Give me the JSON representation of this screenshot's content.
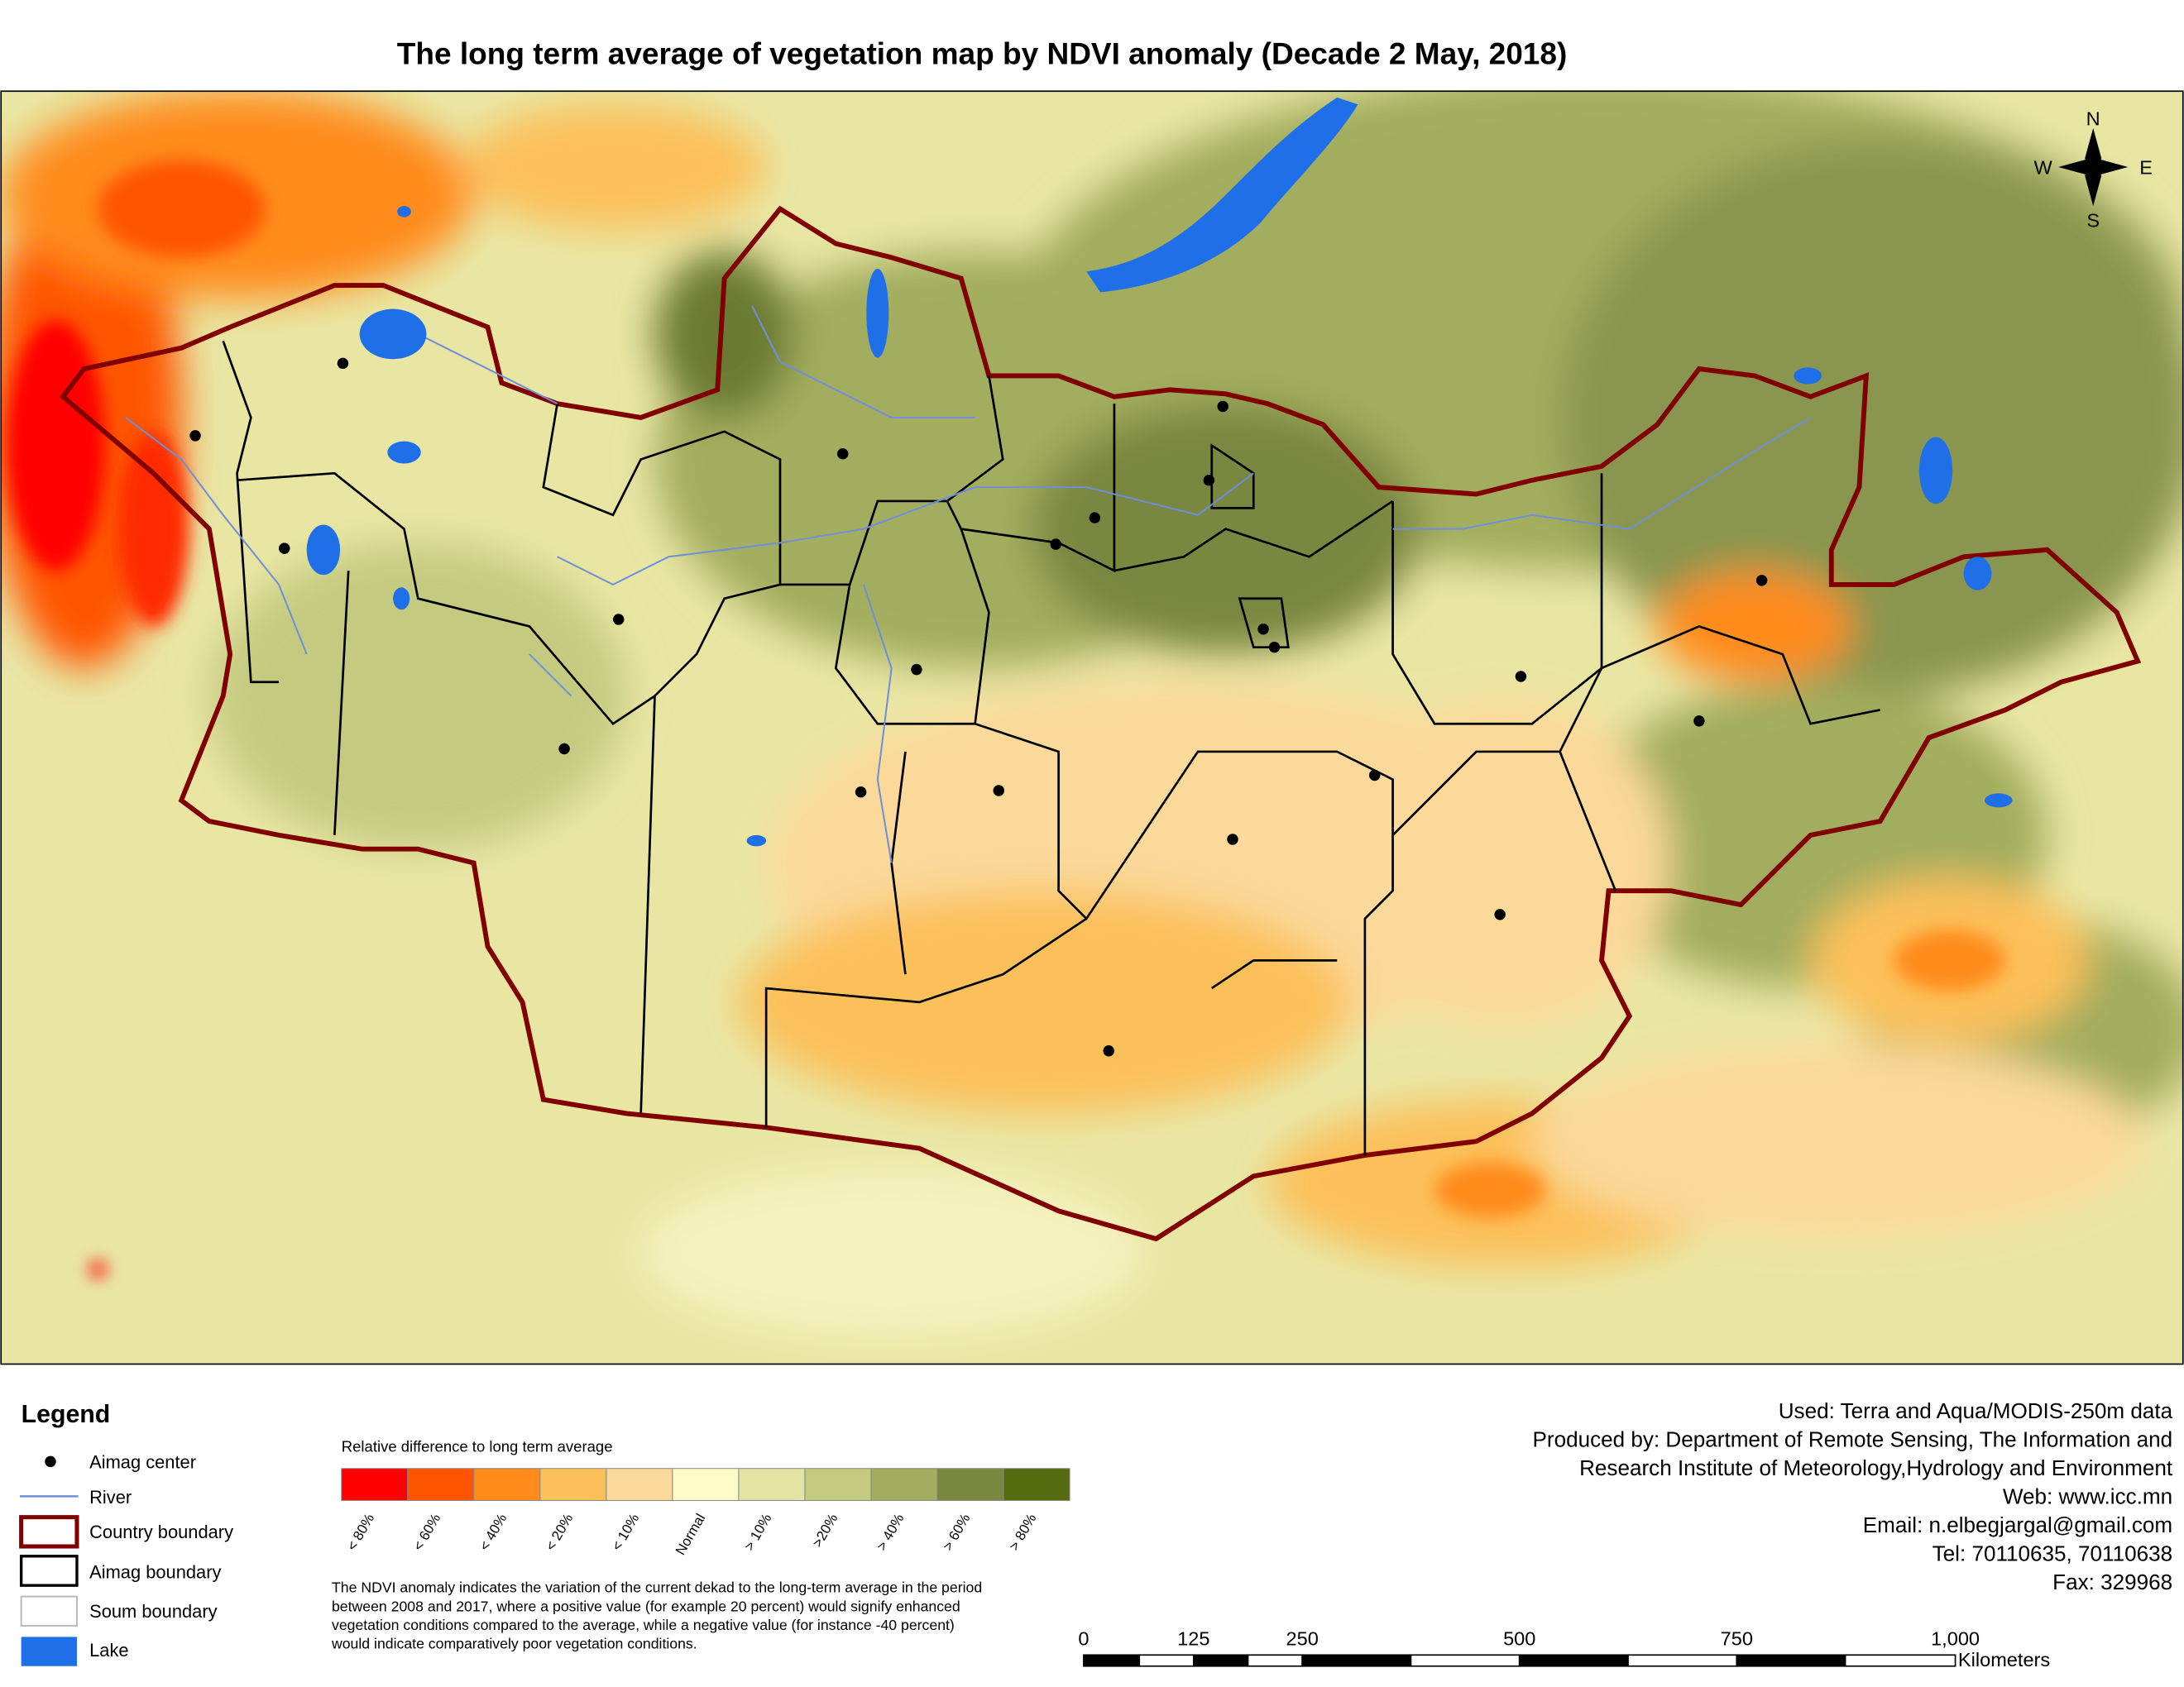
{
  "header": {
    "title": "The long term average of vegetation map by NDVI anomaly (Decade 2 May, 2018)"
  },
  "compass": {
    "north": "N",
    "east": "E",
    "south": "S",
    "west": "W"
  },
  "legend": {
    "title": "Legend",
    "items": [
      "Aimag center",
      "River",
      "Country boundary",
      "Aimag boundary",
      "Soum boundary",
      "Lake"
    ]
  },
  "colorbar": {
    "title": "Relative difference to long term average",
    "classes": [
      {
        "label": "< 80%",
        "color": "#ff0000"
      },
      {
        "label": "< 60%",
        "color": "#ff5500"
      },
      {
        "label": "< 40%",
        "color": "#ff8c1a"
      },
      {
        "label": "< 20%",
        "color": "#fcc05a"
      },
      {
        "label": "< 10%",
        "color": "#fbd99a"
      },
      {
        "label": "Normal",
        "color": "#fdfbc8"
      },
      {
        "label": "> 10%",
        "color": "#e2e3a5"
      },
      {
        "label": ">20%",
        "color": "#c4cb80"
      },
      {
        "label": "> 40%",
        "color": "#a3ad5e"
      },
      {
        "label": "> 60%",
        "color": "#7a8740"
      },
      {
        "label": "> 80%",
        "color": "#566a10"
      }
    ]
  },
  "note": [
    "The NDVI anomaly indicates the variation of the current dekad to the long-term average in the period",
    "between 2008 and 2017, where a positive value (for example 20 percent) would signify enhanced",
    "vegetation conditions compared to the average, while a negative value (for instance -40 percent)",
    "would indicate comparatively poor vegetation conditions."
  ],
  "credits": [
    "Used: Terra and Aqua/MODIS-250m data",
    "Produced by: Department of Remote Sensing, The Information and",
    "Research Institute of Meteorology,Hydrology and Environment",
    "Web: www.icc.mn",
    "Email: n.elbegjargal@gmail.com",
    "Tel: 70110635, 70110638",
    "Fax: 329968"
  ],
  "scale_bar": {
    "labels": [
      "0",
      "125",
      "250",
      "500",
      "750",
      "1,000"
    ],
    "unit": "Kilometers"
  }
}
